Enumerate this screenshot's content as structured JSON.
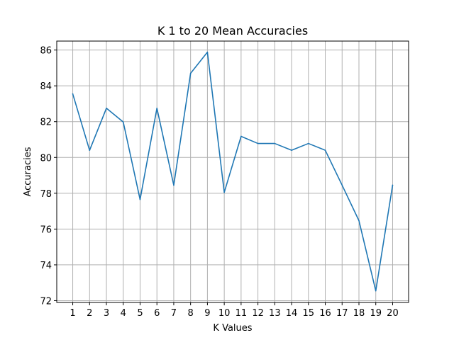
{
  "chart_data": {
    "type": "line",
    "title": "K 1 to 20 Mean Accuracies",
    "xlabel": "K Values",
    "ylabel": "Accuracies",
    "x": [
      1,
      2,
      3,
      4,
      5,
      6,
      7,
      8,
      9,
      10,
      11,
      12,
      13,
      14,
      15,
      16,
      17,
      18,
      19,
      20
    ],
    "series": [
      {
        "values": [
          83.55,
          80.4,
          82.75,
          81.98,
          77.65,
          82.75,
          78.45,
          84.7,
          85.88,
          78.05,
          81.18,
          80.78,
          80.78,
          80.4,
          80.78,
          80.4,
          78.45,
          76.47,
          72.55,
          78.45
        ],
        "color": "#1f77b4"
      }
    ],
    "xticks": [
      1,
      2,
      3,
      4,
      5,
      6,
      7,
      8,
      9,
      10,
      11,
      12,
      13,
      14,
      15,
      16,
      17,
      18,
      19,
      20
    ],
    "yticks": [
      72,
      74,
      76,
      78,
      80,
      82,
      84,
      86
    ],
    "xlim": [
      0.05,
      20.95
    ],
    "ylim": [
      71.9,
      86.5
    ],
    "grid": true,
    "legend": "none"
  }
}
